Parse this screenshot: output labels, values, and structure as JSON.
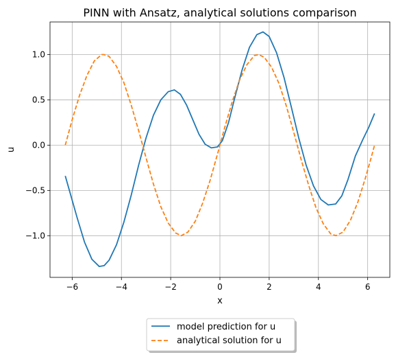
{
  "chart_data": {
    "type": "line",
    "title": "PINN with Ansatz, analytical solutions comparison",
    "xlabel": "x",
    "ylabel": "u",
    "xlim": [
      -6.9,
      6.9
    ],
    "ylim": [
      -1.46,
      1.36
    ],
    "xticks": [
      -6,
      -4,
      -2,
      0,
      2,
      4,
      6
    ],
    "xtick_labels": [
      "−6",
      "−4",
      "−2",
      "0",
      "2",
      "4",
      "6"
    ],
    "yticks": [
      -1.0,
      -0.5,
      0.0,
      0.5,
      1.0
    ],
    "ytick_labels": [
      "−1.0",
      "−0.5",
      "0.0",
      "0.5",
      "1.0"
    ],
    "grid": true,
    "legend_position": "below-center",
    "series": [
      {
        "name": "model prediction for u",
        "color": "#1f77b4",
        "style": "solid",
        "x": [
          -6.28,
          -5.8,
          -5.5,
          -5.2,
          -4.9,
          -4.7,
          -4.5,
          -4.2,
          -3.9,
          -3.6,
          -3.3,
          -3.0,
          -2.7,
          -2.4,
          -2.1,
          -1.85,
          -1.6,
          -1.35,
          -1.1,
          -0.85,
          -0.6,
          -0.35,
          -0.1,
          0.1,
          0.35,
          0.6,
          0.9,
          1.2,
          1.5,
          1.75,
          2.0,
          2.3,
          2.6,
          2.9,
          3.2,
          3.5,
          3.8,
          4.1,
          4.4,
          4.7,
          4.95,
          5.2,
          5.5,
          5.8,
          6.05,
          6.28
        ],
        "y": [
          -0.34,
          -0.8,
          -1.07,
          -1.26,
          -1.34,
          -1.33,
          -1.27,
          -1.1,
          -0.85,
          -0.55,
          -0.22,
          0.08,
          0.33,
          0.5,
          0.59,
          0.61,
          0.56,
          0.44,
          0.28,
          0.12,
          0.01,
          -0.03,
          -0.02,
          0.05,
          0.25,
          0.52,
          0.83,
          1.08,
          1.22,
          1.25,
          1.2,
          1.02,
          0.75,
          0.42,
          0.08,
          -0.22,
          -0.45,
          -0.6,
          -0.66,
          -0.65,
          -0.56,
          -0.38,
          -0.12,
          0.06,
          0.2,
          0.35
        ]
      },
      {
        "name": "analytical solution for u",
        "color": "#ff7f0e",
        "style": "dashed",
        "x": [
          -6.28,
          -6.0,
          -5.7,
          -5.4,
          -5.1,
          -4.8,
          -4.712,
          -4.5,
          -4.2,
          -3.9,
          -3.6,
          -3.3,
          -3.0,
          -2.7,
          -2.4,
          -2.1,
          -1.8,
          -1.571,
          -1.3,
          -1.0,
          -0.7,
          -0.4,
          -0.1,
          0.0,
          0.2,
          0.5,
          0.8,
          1.1,
          1.4,
          1.571,
          1.8,
          2.1,
          2.4,
          2.7,
          3.0,
          3.3,
          3.6,
          3.9,
          4.2,
          4.5,
          4.712,
          5.0,
          5.3,
          5.6,
          5.9,
          6.1,
          6.28
        ],
        "y": [
          0.0,
          0.28,
          0.55,
          0.77,
          0.93,
          1.0,
          1.0,
          0.98,
          0.87,
          0.69,
          0.44,
          0.16,
          -0.14,
          -0.43,
          -0.68,
          -0.86,
          -0.97,
          -1.0,
          -0.96,
          -0.84,
          -0.64,
          -0.39,
          -0.1,
          0.0,
          0.2,
          0.48,
          0.72,
          0.89,
          0.99,
          1.0,
          0.97,
          0.86,
          0.68,
          0.43,
          0.14,
          -0.16,
          -0.44,
          -0.69,
          -0.87,
          -0.98,
          -1.0,
          -0.96,
          -0.83,
          -0.63,
          -0.37,
          -0.18,
          0.0
        ]
      }
    ]
  }
}
